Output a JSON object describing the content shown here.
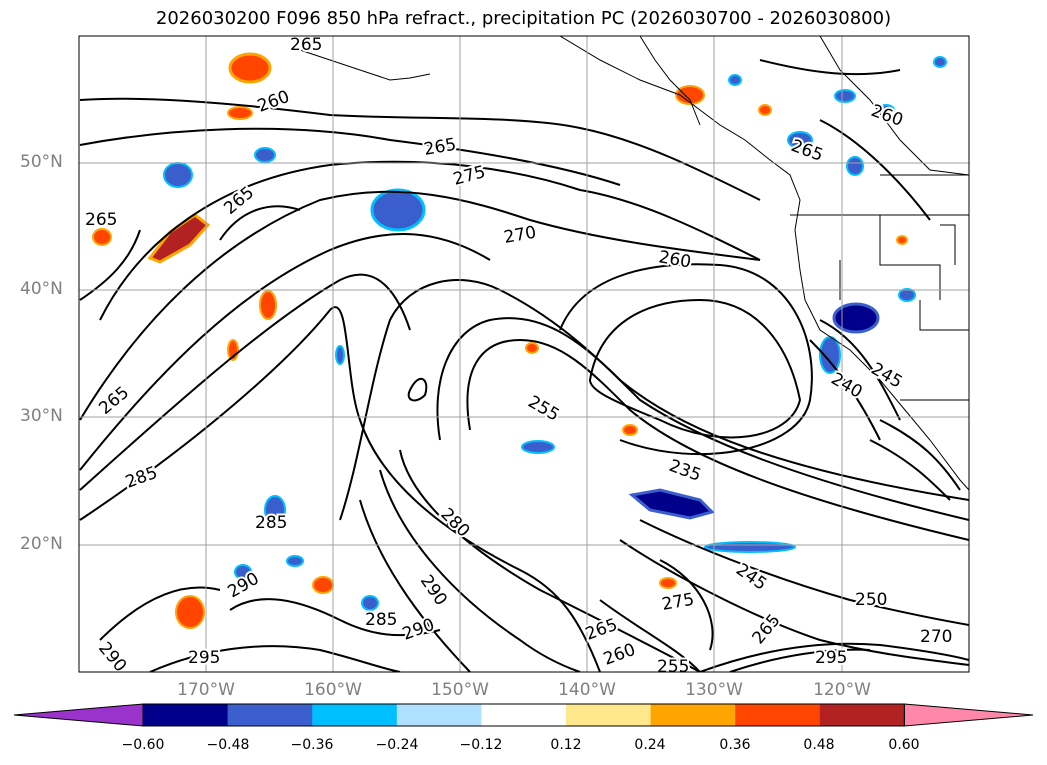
{
  "title": "2026030200 F096 850 hPa refract., precipitation PC (2026030700 - 2026030800)",
  "lat_labels": [
    "50°N",
    "40°N",
    "30°N",
    "20°N"
  ],
  "lon_labels": [
    "170°W",
    "160°W",
    "150°W",
    "140°W",
    "130°W",
    "120°W"
  ],
  "colorbar": {
    "ticks": [
      "−0.60",
      "−0.48",
      "−0.36",
      "−0.24",
      "−0.12",
      "0.12",
      "0.24",
      "0.36",
      "0.48",
      "0.60"
    ],
    "colors": [
      "#9933cc",
      "#00008b",
      "#3a5fcd",
      "#00bfff",
      "#b0e0ff",
      "#ffffff",
      "#ffe88c",
      "#ffa500",
      "#ff4500",
      "#b22222",
      "#ff88aa"
    ]
  },
  "contour_labels": [
    "265",
    "260",
    "265",
    "275",
    "270",
    "260",
    "265",
    "260",
    "265",
    "265",
    "255",
    "245",
    "240",
    "235",
    "285",
    "265",
    "280",
    "285",
    "290",
    "290",
    "285",
    "290",
    "250",
    "275",
    "265",
    "260",
    "255",
    "245",
    "265",
    "270",
    "295",
    "295",
    "290"
  ],
  "map_style": {
    "contour_color": "#000000",
    "coastline_color": "#000000",
    "grid_color": "#a0a0a0"
  }
}
